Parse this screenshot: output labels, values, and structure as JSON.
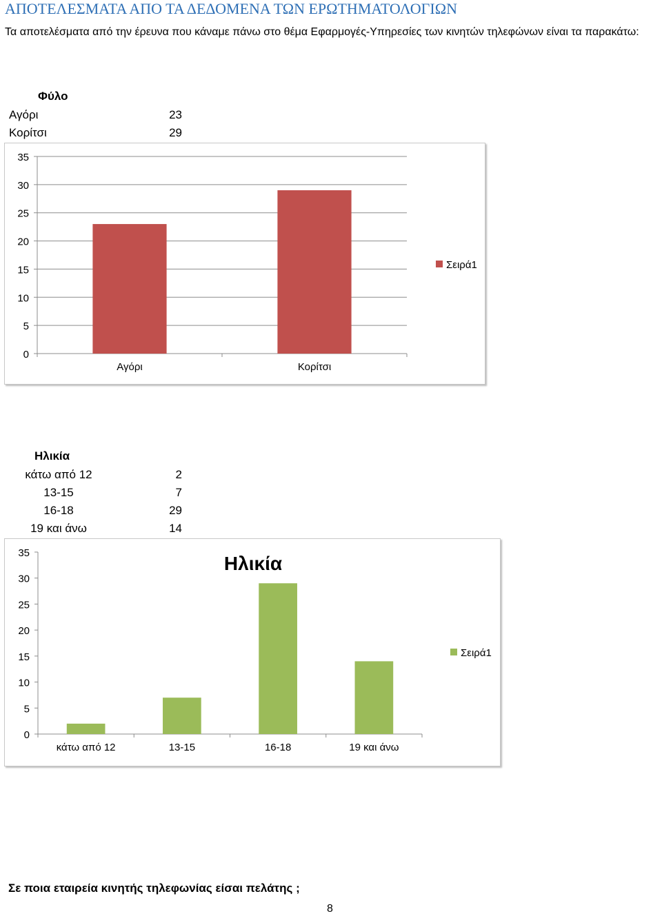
{
  "heading": "ΑΠΟΤΕΛΕΣΜΑΤΑ ΑΠΟ ΤΑ ΔΕΔΟΜΕΝΑ ΤΩΝ ΕΡΩΤΗΜΑΤΟΛΟΓΙΩΝ",
  "intro": "Τα αποτελέσματα από την έρευνα που κάναμε πάνω στο θέμα Εφαρμογές-Υπηρεσίες των κινητών τηλεφώνων είναι τα παρακάτω:",
  "gender_table": {
    "header": "Φύλο",
    "rows": [
      {
        "label": "Αγόρι",
        "value": "23"
      },
      {
        "label": "Κορίτσι",
        "value": "29"
      }
    ]
  },
  "age_table": {
    "header": "Ηλικία",
    "rows": [
      {
        "label": "κάτω από 12",
        "value": "2"
      },
      {
        "label": "13-15",
        "value": "7"
      },
      {
        "label": "16-18",
        "value": "29"
      },
      {
        "label": "19 και άνω",
        "value": "14"
      }
    ]
  },
  "question": "Σε ποια εταιρεία κινητής τηλεφωνίας είσαι πελάτης ;",
  "page_number": "8",
  "chart_data": [
    {
      "type": "bar",
      "title": "",
      "categories": [
        "Αγόρι",
        "Κορίτσι"
      ],
      "series": [
        {
          "name": "Σειρά1",
          "values": [
            23,
            29
          ]
        }
      ],
      "ylim": [
        0,
        35
      ],
      "yticks": [
        0,
        5,
        10,
        15,
        20,
        25,
        30,
        35
      ],
      "color": "#c0504d",
      "legend": "right",
      "grid": true
    },
    {
      "type": "bar",
      "title": "Ηλικία",
      "categories": [
        "κάτω από 12",
        "13-15",
        "16-18",
        "19 και άνω"
      ],
      "series": [
        {
          "name": "Σειρά1",
          "values": [
            2,
            7,
            29,
            14
          ]
        }
      ],
      "ylim": [
        0,
        35
      ],
      "yticks": [
        0,
        5,
        10,
        15,
        20,
        25,
        30,
        35
      ],
      "color": "#9bbb59",
      "legend": "right",
      "grid": false
    }
  ]
}
